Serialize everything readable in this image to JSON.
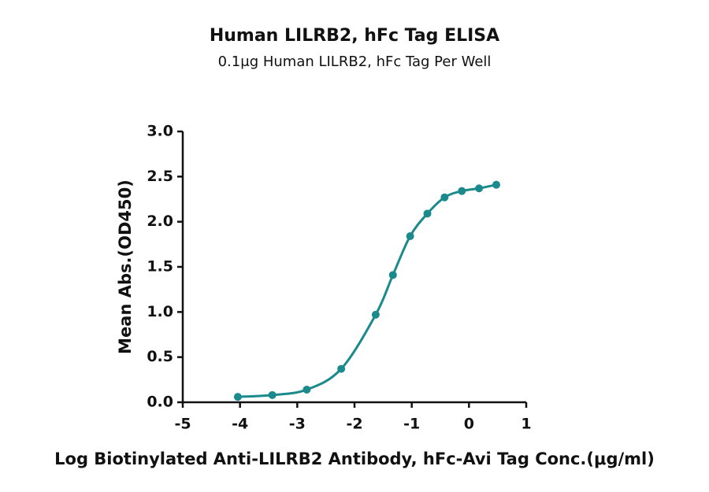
{
  "chart_data": {
    "type": "line",
    "title": "Human LILRB2, hFc Tag ELISA",
    "subtitle": "0.1μg Human LILRB2, hFc Tag Per Well",
    "x_label": "Log Biotinylated Anti-LILRB2 Antibody, hFc-Avi Tag Conc.(μg/ml)",
    "y_label": "Mean Abs.(OD450)",
    "x": [
      -4.038,
      -3.436,
      -2.834,
      -2.232,
      -1.63,
      -1.329,
      -1.028,
      -0.727,
      -0.426,
      -0.125,
      0.176,
      0.477
    ],
    "series": [
      {
        "color": "#1b8a8c",
        "values": [
          0.06,
          0.08,
          0.14,
          0.37,
          0.97,
          1.41,
          1.84,
          2.09,
          2.27,
          2.34,
          2.37,
          2.41
        ]
      }
    ],
    "xlim": [
      -5,
      1
    ],
    "xticks": [
      -5,
      -4,
      -3,
      -2,
      -1,
      0,
      1
    ],
    "ylim": [
      0,
      3
    ],
    "yticks": [
      {
        "value": 0,
        "label": "0.0"
      },
      {
        "value": 0.5,
        "label": "0.5"
      },
      {
        "value": 1,
        "label": "1.0"
      },
      {
        "value": 1.5,
        "label": "1.5"
      },
      {
        "value": 2,
        "label": "2.0"
      },
      {
        "value": 2.5,
        "label": "2.5"
      },
      {
        "value": 3,
        "label": "3.0"
      }
    ]
  }
}
